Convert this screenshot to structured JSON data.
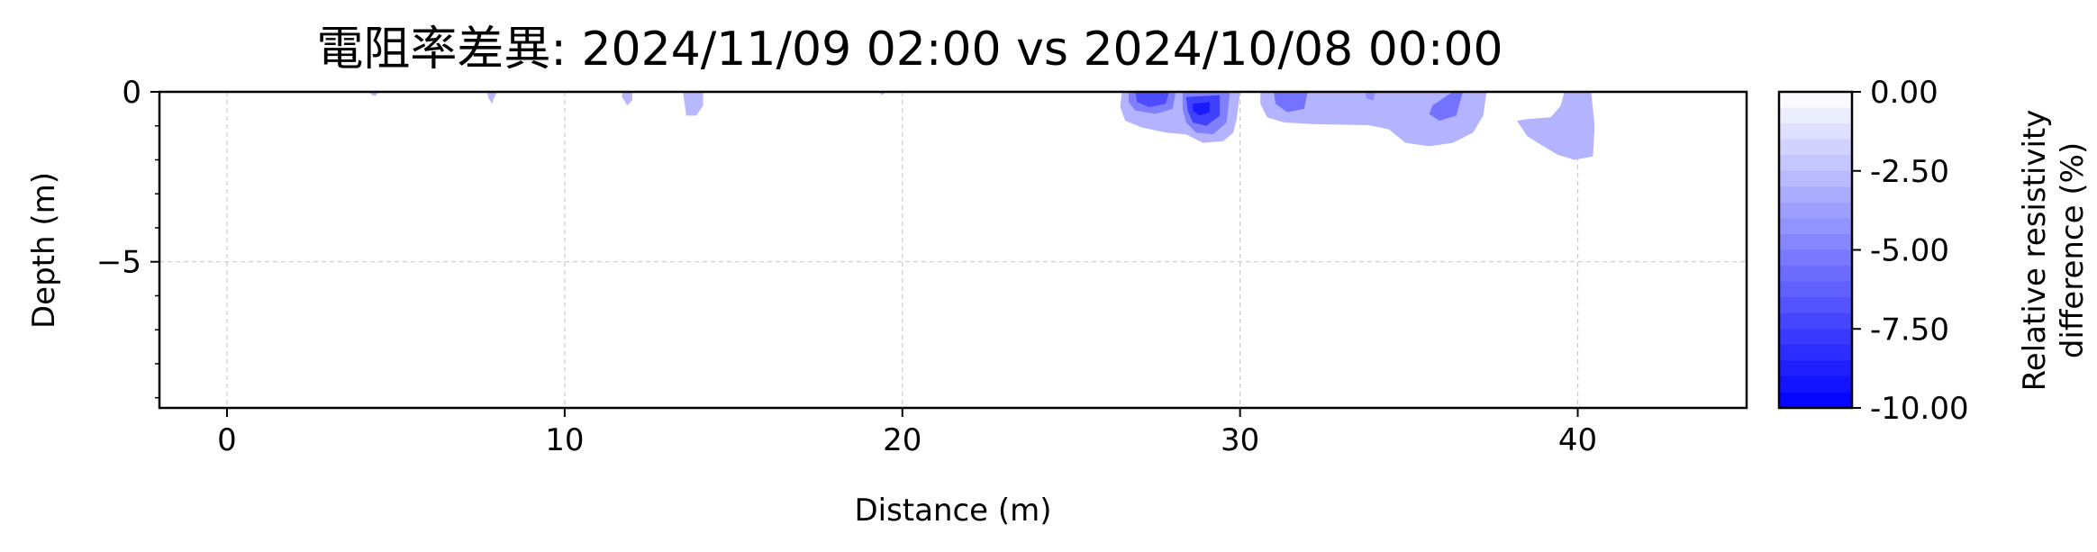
{
  "chart_data": {
    "type": "heatmap",
    "title": "電阻率差異: 2024/11/09 02:00 vs 2024/10/08 00:00",
    "xlabel": "Distance (m)",
    "ylabel": "Depth (m)",
    "xlim": [
      -2,
      45
    ],
    "ylim": [
      -9.3,
      0
    ],
    "xticks": [
      {
        "value": 0,
        "label": "0"
      },
      {
        "value": 10,
        "label": "10"
      },
      {
        "value": 20,
        "label": "20"
      },
      {
        "value": 30,
        "label": "30"
      },
      {
        "value": 40,
        "label": "40"
      }
    ],
    "yticks": [
      {
        "value": 0,
        "label": "0"
      },
      {
        "value": -5,
        "label": "−5"
      }
    ],
    "grid": true,
    "colorbar": {
      "label_lines": [
        "Relative resistivity",
        "difference (%)"
      ],
      "range": [
        -10,
        0
      ],
      "ticks": [
        {
          "value": 0,
          "label": "0.00"
        },
        {
          "value": -2.5,
          "label": "-2.50"
        },
        {
          "value": -5,
          "label": "-5.00"
        },
        {
          "value": -7.5,
          "label": "-7.50"
        },
        {
          "value": -10,
          "label": "-10.00"
        }
      ],
      "levels": 20,
      "color_low": "#0000ff",
      "color_high": "#ffffff"
    },
    "regions": [
      {
        "value": -2.8,
        "points": [
          [
            4.2,
            0
          ],
          [
            4.5,
            0
          ],
          [
            4.4,
            -0.12
          ],
          [
            4.3,
            -0.1
          ]
        ]
      },
      {
        "value": -2.8,
        "points": [
          [
            7.7,
            0
          ],
          [
            8.0,
            0
          ],
          [
            7.9,
            -0.2
          ],
          [
            7.85,
            -0.35
          ],
          [
            7.75,
            -0.2
          ]
        ]
      },
      {
        "value": -2.8,
        "points": [
          [
            11.7,
            0
          ],
          [
            12.0,
            0
          ],
          [
            12.0,
            -0.25
          ],
          [
            11.85,
            -0.4
          ],
          [
            11.7,
            -0.15
          ]
        ]
      },
      {
        "value": -2.8,
        "points": [
          [
            13.5,
            0
          ],
          [
            14.1,
            0
          ],
          [
            14.1,
            -0.4
          ],
          [
            13.9,
            -0.7
          ],
          [
            13.6,
            -0.7
          ],
          [
            13.55,
            -0.35
          ]
        ]
      },
      {
        "value": -2.8,
        "points": [
          [
            19.3,
            0
          ],
          [
            19.5,
            0
          ],
          [
            19.4,
            -0.1
          ]
        ]
      },
      {
        "value": -3.0,
        "points": [
          [
            26.5,
            0
          ],
          [
            30.0,
            0
          ],
          [
            29.9,
            -0.8
          ],
          [
            29.8,
            -1.2
          ],
          [
            29.5,
            -1.45
          ],
          [
            28.9,
            -1.5
          ],
          [
            28.4,
            -1.25
          ],
          [
            27.8,
            -1.2
          ],
          [
            27.1,
            -1.05
          ],
          [
            26.6,
            -0.85
          ],
          [
            26.45,
            -0.45
          ]
        ]
      },
      {
        "value": -5.0,
        "points": [
          [
            26.7,
            0
          ],
          [
            28.1,
            0
          ],
          [
            28.0,
            -0.5
          ],
          [
            27.5,
            -0.65
          ],
          [
            26.9,
            -0.55
          ],
          [
            26.7,
            -0.3
          ]
        ]
      },
      {
        "value": -7.0,
        "points": [
          [
            26.9,
            0
          ],
          [
            27.9,
            0
          ],
          [
            27.8,
            -0.35
          ],
          [
            27.3,
            -0.45
          ],
          [
            26.95,
            -0.3
          ]
        ]
      },
      {
        "value": -5.0,
        "points": [
          [
            28.3,
            0
          ],
          [
            29.7,
            0
          ],
          [
            29.6,
            -0.9
          ],
          [
            29.2,
            -1.25
          ],
          [
            28.7,
            -1.2
          ],
          [
            28.4,
            -0.9
          ],
          [
            28.3,
            -0.5
          ]
        ]
      },
      {
        "value": -7.5,
        "points": [
          [
            28.4,
            -0.15
          ],
          [
            29.4,
            -0.1
          ],
          [
            29.4,
            -0.7
          ],
          [
            29.0,
            -1.0
          ],
          [
            28.6,
            -0.9
          ],
          [
            28.45,
            -0.55
          ]
        ]
      },
      {
        "value": -9.0,
        "points": [
          [
            28.6,
            -0.35
          ],
          [
            29.1,
            -0.3
          ],
          [
            29.1,
            -0.6
          ],
          [
            28.8,
            -0.7
          ],
          [
            28.6,
            -0.55
          ]
        ]
      },
      {
        "value": -3.0,
        "points": [
          [
            30.6,
            0
          ],
          [
            37.3,
            0
          ],
          [
            37.2,
            -0.7
          ],
          [
            36.9,
            -1.2
          ],
          [
            36.3,
            -1.5
          ],
          [
            35.6,
            -1.6
          ],
          [
            34.9,
            -1.5
          ],
          [
            34.4,
            -1.1
          ],
          [
            33.8,
            -0.98
          ],
          [
            32.2,
            -0.95
          ],
          [
            31.3,
            -0.9
          ],
          [
            30.8,
            -0.75
          ],
          [
            30.6,
            -0.35
          ]
        ]
      },
      {
        "value": -5.5,
        "points": [
          [
            31.0,
            0
          ],
          [
            32.0,
            0
          ],
          [
            31.9,
            -0.5
          ],
          [
            31.4,
            -0.6
          ],
          [
            31.05,
            -0.35
          ]
        ]
      },
      {
        "value": -5.5,
        "points": [
          [
            35.7,
            -0.4
          ],
          [
            36.3,
            0
          ],
          [
            36.6,
            0
          ],
          [
            36.4,
            -0.7
          ],
          [
            35.9,
            -0.85
          ],
          [
            35.6,
            -0.65
          ]
        ]
      },
      {
        "value": -4.5,
        "points": [
          [
            33.7,
            0
          ],
          [
            34.0,
            0
          ],
          [
            33.95,
            -0.25
          ],
          [
            33.75,
            -0.2
          ]
        ]
      },
      {
        "value": -3.0,
        "points": [
          [
            39.6,
            0
          ],
          [
            40.4,
            0
          ],
          [
            40.5,
            -1.0
          ],
          [
            40.45,
            -1.9
          ],
          [
            39.9,
            -2.0
          ],
          [
            39.4,
            -1.85
          ],
          [
            38.9,
            -1.55
          ],
          [
            38.5,
            -1.3
          ],
          [
            38.2,
            -0.85
          ],
          [
            38.5,
            -0.8
          ],
          [
            39.2,
            -0.75
          ],
          [
            39.5,
            -0.4
          ]
        ]
      }
    ]
  }
}
